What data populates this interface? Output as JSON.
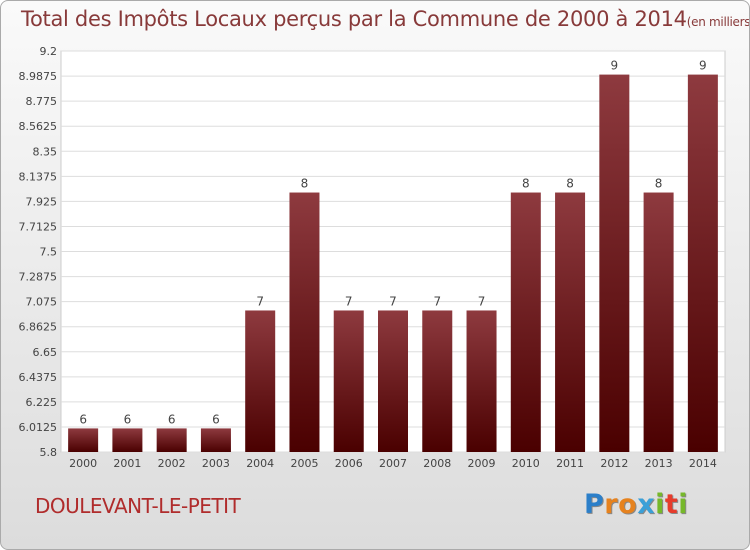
{
  "title": {
    "main": "Total des Impôts Locaux perçus par la Commune de 2000 à 2014",
    "unit": "(en milliers d'€)"
  },
  "commune": "DOULEVANT-LE-PETIT",
  "logo": {
    "letters": [
      "P",
      "r",
      "o",
      "x",
      "i",
      "t",
      "i"
    ],
    "colors": [
      "#2c7fc9",
      "#e6821e",
      "#e6821e",
      "#3aa0d8",
      "#76b82a",
      "#e63c2c",
      "#76b82a"
    ]
  },
  "colors": {
    "bar_top": "#8e3a3f",
    "bar_bottom": "#4a0000",
    "title": "#883a3a",
    "commune": "#b02c2c"
  },
  "chart_data": {
    "type": "bar",
    "title": "Total des Impôts Locaux perçus par la Commune de 2000 à 2014",
    "xlabel": "",
    "ylabel": "",
    "ylim": [
      5.8,
      9.2
    ],
    "yticks": [
      "9.2",
      "8.9875",
      "8.775",
      "8.5625",
      "8.35",
      "8.1375",
      "7.925",
      "7.7125",
      "7.5",
      "7.2875",
      "7.075",
      "6.8625",
      "6.65",
      "6.4375",
      "6.225",
      "6.0125",
      "5.8"
    ],
    "grid": true,
    "categories": [
      "2000",
      "2001",
      "2002",
      "2003",
      "2004",
      "2005",
      "2006",
      "2007",
      "2008",
      "2009",
      "2010",
      "2011",
      "2012",
      "2013",
      "2014"
    ],
    "values": [
      6,
      6,
      6,
      6,
      7,
      8,
      7,
      7,
      7,
      7,
      8,
      8,
      9,
      8,
      9
    ],
    "labels": [
      "6",
      "6",
      "6",
      "6",
      "7",
      "8",
      "7",
      "7",
      "7",
      "7",
      "8",
      "8",
      "9",
      "8",
      "9"
    ]
  }
}
